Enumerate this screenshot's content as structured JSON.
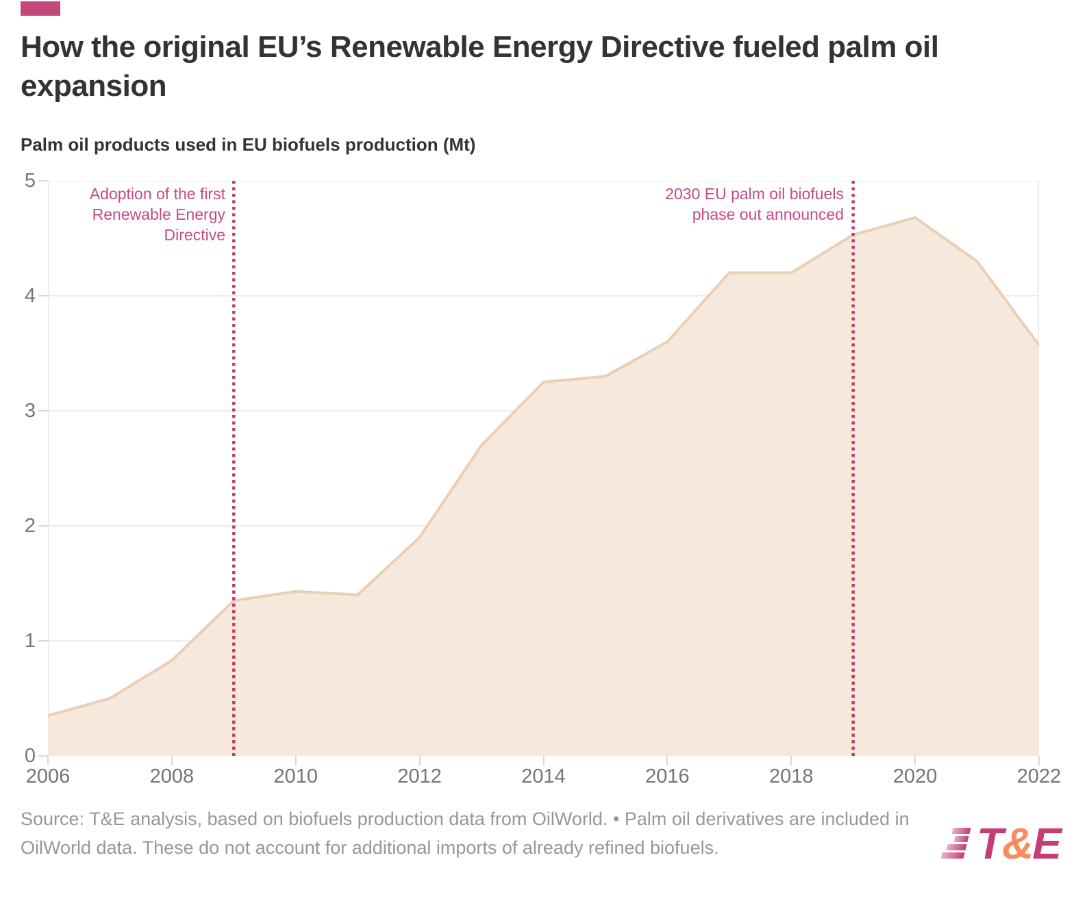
{
  "accent_color": "#c4487c",
  "header": {
    "title": "How the original EU’s Renewable Energy Directive fueled palm oil expansion",
    "subtitle": "Palm oil products used in EU biofuels production (Mt)"
  },
  "chart_data": {
    "type": "area",
    "title": "Palm oil products used in EU biofuels production (Mt)",
    "x": [
      2006,
      2007,
      2008,
      2009,
      2010,
      2011,
      2012,
      2013,
      2014,
      2015,
      2016,
      2017,
      2018,
      2019,
      2020,
      2021,
      2022
    ],
    "values": [
      0.35,
      0.5,
      0.83,
      1.35,
      1.43,
      1.4,
      1.9,
      2.7,
      3.25,
      3.3,
      3.6,
      4.2,
      4.2,
      4.53,
      4.68,
      4.3,
      3.57
    ],
    "xlabel": "",
    "ylabel": "Mt",
    "ylim": [
      0,
      5
    ],
    "yticks": [
      0,
      1,
      2,
      3,
      4,
      5
    ],
    "xticks": [
      2006,
      2008,
      2010,
      2012,
      2014,
      2016,
      2018,
      2020,
      2022
    ],
    "grid": "horizontal",
    "legend": "none",
    "area_fill": "#f6e8db",
    "area_stroke": "#e9cfb6",
    "gridline_color": "#ececec",
    "axis_line_color": "#dcdcdc",
    "tick_label_color": "#757575",
    "annotation_line_color": "#c23a6e",
    "annotation_text_color": "#c74b80",
    "annotations": [
      {
        "x": 2009,
        "lines": [
          "Adoption of the first",
          "Renewable Energy",
          "Directive"
        ]
      },
      {
        "x": 2019,
        "lines": [
          "2030 EU palm oil biofuels",
          "phase out announced"
        ]
      }
    ]
  },
  "footer": {
    "source": "Source: T&E analysis, based on biofuels production data from OilWorld. • Palm oil derivatives are included in OilWorld data. These do not account for additional imports of already refined biofuels.",
    "logo": {
      "t": "T",
      "amp": "&",
      "e": "E"
    }
  }
}
